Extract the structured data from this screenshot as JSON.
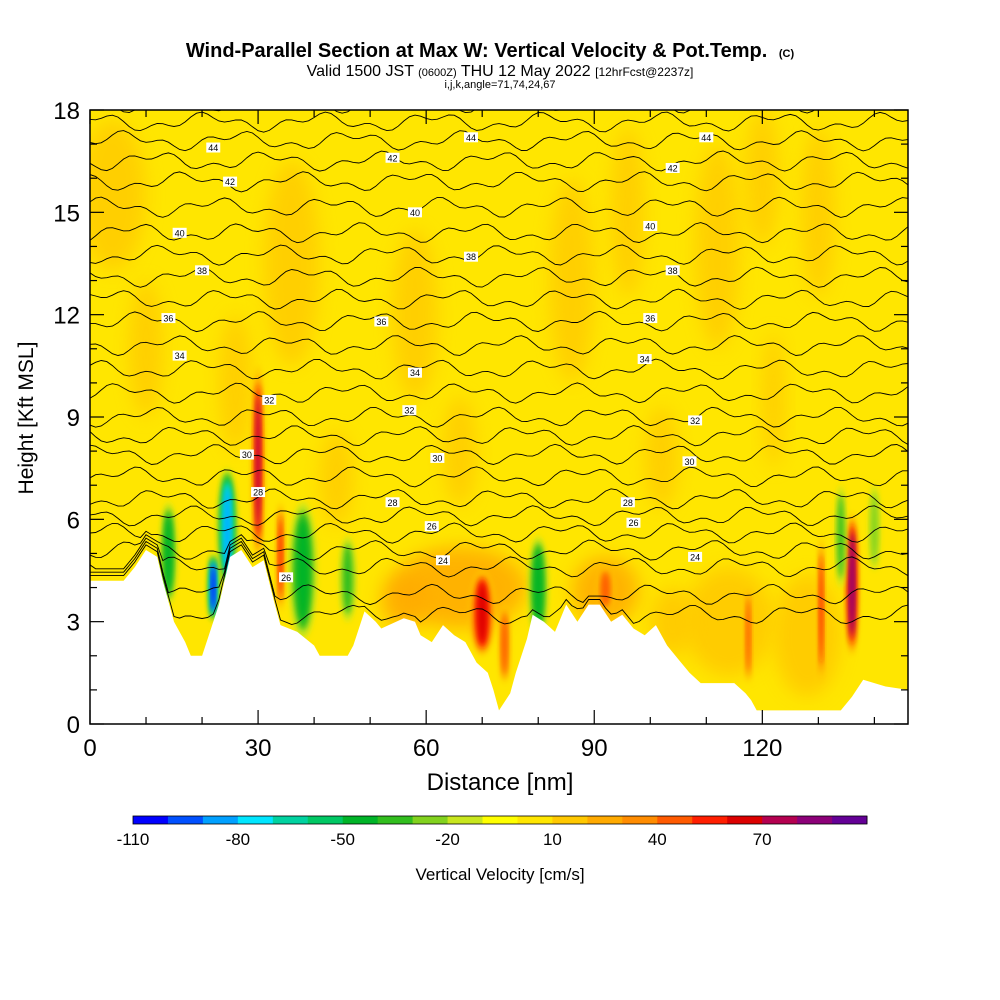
{
  "chart_data": {
    "type": "heatmap",
    "title_main": "Wind-Parallel Section at Max W: Vertical Velocity & Pot.Temp.",
    "title_mark": "(C)",
    "subtitle_a": "Valid 1500 JST",
    "subtitle_b": "(0600Z)",
    "subtitle_c": "THU 12 May 2022",
    "subtitle_d": "[12hrFcst@2237z]",
    "subtitle_line2": "i,j,k,angle=71,74,24,67",
    "xlabel": "Distance [nm]",
    "ylabel": "Height [Kft MSL]",
    "xlim": [
      0,
      146
    ],
    "ylim": [
      0,
      18
    ],
    "x_ticks": [
      0,
      30,
      60,
      90,
      120
    ],
    "y_ticks": [
      0,
      3,
      6,
      9,
      12,
      15,
      18
    ],
    "colorbar": {
      "label": "Vertical Velocity [cm/s]",
      "tick_labels": [
        "-110",
        "-80",
        "-50",
        "-20",
        "10",
        "40",
        "70"
      ],
      "min": -110,
      "max": 100,
      "step": 10,
      "colors": [
        "#0000ff",
        "#0050ff",
        "#00a0ff",
        "#00e6ff",
        "#00d2a0",
        "#00c864",
        "#00b428",
        "#32be1e",
        "#82d21e",
        "#c8e61e",
        "#ffff00",
        "#ffe600",
        "#ffc800",
        "#ffaa00",
        "#ff8c00",
        "#ff5a00",
        "#ff1e00",
        "#dc0000",
        "#b40050",
        "#8c0078",
        "#640096"
      ]
    },
    "contour_field": "potential temperature",
    "contour_labels": [
      {
        "x": 22,
        "y": 16.9,
        "text": "44"
      },
      {
        "x": 68,
        "y": 17.2,
        "text": "44"
      },
      {
        "x": 110,
        "y": 17.2,
        "text": "44"
      },
      {
        "x": 25,
        "y": 15.9,
        "text": "42"
      },
      {
        "x": 54,
        "y": 16.6,
        "text": "42"
      },
      {
        "x": 104,
        "y": 16.3,
        "text": "42"
      },
      {
        "x": 16,
        "y": 14.4,
        "text": "40"
      },
      {
        "x": 58,
        "y": 15.0,
        "text": "40"
      },
      {
        "x": 100,
        "y": 14.6,
        "text": "40"
      },
      {
        "x": 20,
        "y": 13.3,
        "text": "38"
      },
      {
        "x": 68,
        "y": 13.7,
        "text": "38"
      },
      {
        "x": 104,
        "y": 13.3,
        "text": "38"
      },
      {
        "x": 14,
        "y": 11.9,
        "text": "36"
      },
      {
        "x": 52,
        "y": 11.8,
        "text": "36"
      },
      {
        "x": 100,
        "y": 11.9,
        "text": "36"
      },
      {
        "x": 16,
        "y": 10.8,
        "text": "34"
      },
      {
        "x": 58,
        "y": 10.3,
        "text": "34"
      },
      {
        "x": 99,
        "y": 10.7,
        "text": "34"
      },
      {
        "x": 32,
        "y": 9.5,
        "text": "32"
      },
      {
        "x": 57,
        "y": 9.2,
        "text": "32"
      },
      {
        "x": 108,
        "y": 8.9,
        "text": "32"
      },
      {
        "x": 28,
        "y": 7.9,
        "text": "30"
      },
      {
        "x": 62,
        "y": 7.8,
        "text": "30"
      },
      {
        "x": 107,
        "y": 7.7,
        "text": "30"
      },
      {
        "x": 30,
        "y": 6.8,
        "text": "28"
      },
      {
        "x": 54,
        "y": 6.5,
        "text": "28"
      },
      {
        "x": 96,
        "y": 6.5,
        "text": "28"
      },
      {
        "x": 61,
        "y": 5.8,
        "text": "26"
      },
      {
        "x": 97,
        "y": 5.9,
        "text": "26"
      },
      {
        "x": 35,
        "y": 4.3,
        "text": "26"
      },
      {
        "x": 63,
        "y": 4.8,
        "text": "24"
      },
      {
        "x": 108,
        "y": 4.9,
        "text": "24"
      }
    ],
    "terrain_height_kft": [
      [
        0,
        4.2
      ],
      [
        6,
        4.2
      ],
      [
        8,
        4.6
      ],
      [
        10,
        5.1
      ],
      [
        12,
        4.9
      ],
      [
        13,
        4.2
      ],
      [
        15,
        3.0
      ],
      [
        17,
        2.4
      ],
      [
        18,
        2.0
      ],
      [
        20,
        2.0
      ],
      [
        21,
        2.5
      ],
      [
        23,
        3.5
      ],
      [
        25,
        4.9
      ],
      [
        27,
        5.1
      ],
      [
        29,
        4.6
      ],
      [
        31,
        4.8
      ],
      [
        33,
        3.5
      ],
      [
        34,
        2.9
      ],
      [
        37,
        2.7
      ],
      [
        40,
        2.3
      ],
      [
        41,
        2.0
      ],
      [
        46,
        2.0
      ],
      [
        47,
        2.3
      ],
      [
        49,
        3.3
      ],
      [
        51,
        3.0
      ],
      [
        52,
        2.8
      ],
      [
        56,
        3.1
      ],
      [
        58,
        3.0
      ],
      [
        59,
        2.6
      ],
      [
        61,
        2.4
      ],
      [
        63,
        2.9
      ],
      [
        65,
        2.6
      ],
      [
        67,
        2.4
      ],
      [
        69,
        1.8
      ],
      [
        71,
        1.5
      ],
      [
        72,
        1.0
      ],
      [
        73,
        0.4
      ],
      [
        75,
        0.9
      ],
      [
        76,
        1.5
      ],
      [
        78,
        2.5
      ],
      [
        79,
        3.2
      ],
      [
        81,
        3.0
      ],
      [
        83,
        2.7
      ],
      [
        85,
        3.5
      ],
      [
        87,
        3.0
      ],
      [
        89,
        3.5
      ],
      [
        91,
        3.5
      ],
      [
        93,
        3.0
      ],
      [
        95,
        3.2
      ],
      [
        97,
        2.8
      ],
      [
        99,
        2.6
      ],
      [
        101,
        2.9
      ],
      [
        103,
        2.3
      ],
      [
        105,
        1.9
      ],
      [
        107,
        1.5
      ],
      [
        109,
        1.2
      ],
      [
        115,
        1.2
      ],
      [
        117,
        0.9
      ],
      [
        118,
        0.7
      ],
      [
        119,
        0.4
      ],
      [
        124,
        0.4
      ],
      [
        134,
        0.4
      ],
      [
        136,
        0.8
      ],
      [
        138,
        1.3
      ],
      [
        142,
        1.1
      ],
      [
        146,
        1.0
      ]
    ],
    "vertical_velocity_features": [
      {
        "x": 30,
        "w": 2.2,
        "y0": 4.8,
        "y1": 10.5,
        "value": 70
      },
      {
        "x": 34,
        "w": 1.6,
        "y0": 3.3,
        "y1": 6.5,
        "value": 50
      },
      {
        "x": 70,
        "w": 4.5,
        "y0": 2.0,
        "y1": 4.5,
        "value": 60
      },
      {
        "x": 74,
        "w": 2.0,
        "y0": 1.2,
        "y1": 3.5,
        "value": 40
      },
      {
        "x": 92,
        "w": 3.0,
        "y0": 3.3,
        "y1": 4.6,
        "value": 40
      },
      {
        "x": 117.5,
        "w": 1.4,
        "y0": 1.2,
        "y1": 4.0,
        "value": 40
      },
      {
        "x": 130.5,
        "w": 1.4,
        "y0": 1.2,
        "y1": 5.5,
        "value": 50
      },
      {
        "x": 136,
        "w": 2.4,
        "y0": 2.0,
        "y1": 6.2,
        "value": 80
      },
      {
        "x": 24.5,
        "w": 3.5,
        "y0": 4.0,
        "y1": 7.5,
        "value": -80
      },
      {
        "x": 22,
        "w": 2.0,
        "y0": 3.0,
        "y1": 5.0,
        "value": -100
      },
      {
        "x": 14,
        "w": 3.0,
        "y0": 3.5,
        "y1": 6.5,
        "value": -40
      },
      {
        "x": 38,
        "w": 5.0,
        "y0": 2.5,
        "y1": 6.5,
        "value": -40
      },
      {
        "x": 46,
        "w": 3.0,
        "y0": 3.0,
        "y1": 5.5,
        "value": -30
      },
      {
        "x": 80,
        "w": 3.5,
        "y0": 2.5,
        "y1": 5.5,
        "value": -40
      },
      {
        "x": 134,
        "w": 2.0,
        "y0": 4.0,
        "y1": 7.0,
        "value": -30
      },
      {
        "x": 140,
        "w": 2.0,
        "y0": 4.5,
        "y1": 7.0,
        "value": -20
      }
    ]
  }
}
